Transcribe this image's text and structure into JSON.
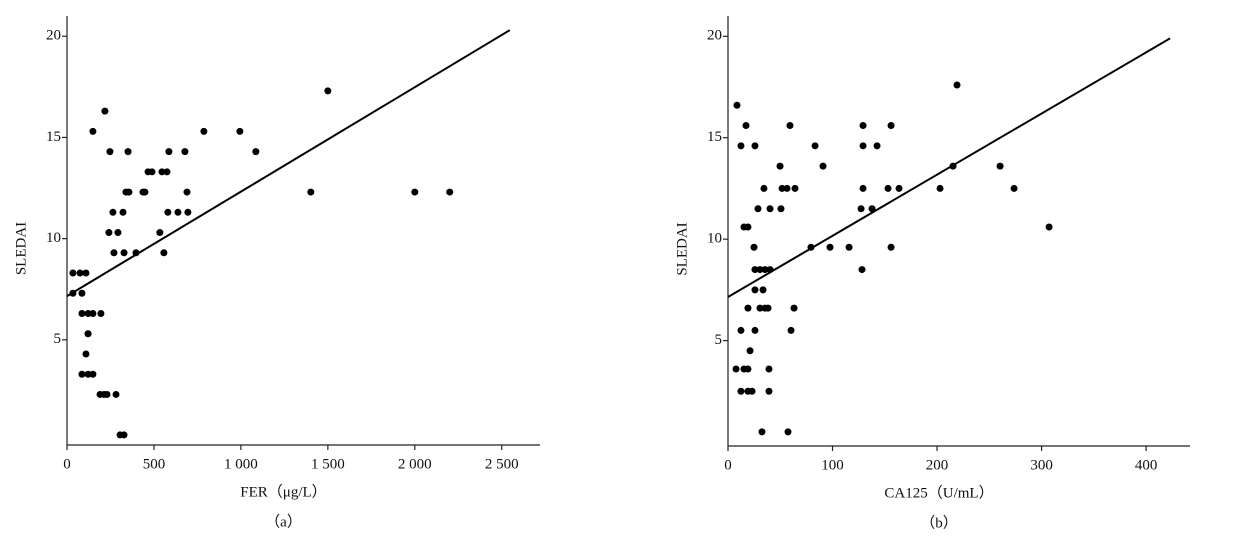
{
  "chart_data": [
    {
      "type": "scatter",
      "subtitle": "（a）",
      "x_label": "FER（μg/L）",
      "y_label": "SLEDAI",
      "color": "#000000",
      "x": [
        34,
        75,
        109,
        34,
        86,
        86,
        121,
        121,
        121,
        109,
        86,
        121,
        149,
        149,
        195,
        149,
        218,
        247,
        241,
        264,
        293,
        270,
        322,
        328,
        339,
        356,
        351,
        397,
        437,
        448,
        466,
        489,
        534,
        546,
        575,
        557,
        580,
        586,
        638,
        678,
        690,
        695,
        787,
        994,
        1086,
        1402,
        1500,
        2000,
        2201,
        190,
        213,
        230,
        282,
        305,
        328
      ],
      "y": [
        8.3,
        8.3,
        8.3,
        7.3,
        7.3,
        6.3,
        6.3,
        5.3,
        5.3,
        4.3,
        3.3,
        3.3,
        3.3,
        6.3,
        6.3,
        15.3,
        16.3,
        14.3,
        10.3,
        11.3,
        10.3,
        9.3,
        11.3,
        9.3,
        12.3,
        12.3,
        14.3,
        9.3,
        12.3,
        12.3,
        13.3,
        13.3,
        10.3,
        13.3,
        13.3,
        9.3,
        11.3,
        14.3,
        11.3,
        14.3,
        12.3,
        11.3,
        15.3,
        15.3,
        14.3,
        12.3,
        17.3,
        12.3,
        12.3,
        2.3,
        2.3,
        2.3,
        2.3,
        0.3,
        0.3
      ],
      "fit": {
        "x": [
          0,
          2546
        ],
        "y": [
          7.16,
          20.3
        ]
      },
      "xlim": [
        0,
        2720
      ],
      "ylim": [
        0,
        21
      ],
      "xticks": [
        0,
        500,
        {
          "value": 1000,
          "label": "1 000"
        },
        {
          "value": 1500,
          "label": "1 500"
        },
        {
          "value": 2000,
          "label": "2 000"
        },
        {
          "value": 2500,
          "label": "2 500"
        }
      ],
      "yticks": [
        5,
        10,
        15,
        20
      ]
    },
    {
      "type": "scatter",
      "subtitle": "（b）",
      "x_label": "CA125（U/mL）",
      "y_label": "SLEDAI",
      "color": "#000000",
      "x": [
        8.6,
        12.4,
        17.2,
        15.3,
        19.1,
        25.8,
        24.9,
        28.7,
        34.4,
        40.2,
        25.8,
        30.6,
        35.4,
        40.2,
        25.8,
        33.5,
        30.6,
        35.4,
        38.3,
        19.1,
        12.4,
        25.8,
        21.1,
        7.7,
        15.3,
        19.1,
        39.2,
        12.4,
        19.1,
        23.0,
        39.2,
        32.5,
        57.4,
        49.8,
        50.7,
        51.7,
        59.3,
        56.5,
        64.1,
        60.3,
        63.2,
        79.4,
        83.3,
        90.9,
        97.6,
        115.8,
        127.3,
        128.2,
        129.2,
        129.2,
        129.2,
        137.8,
        142.6,
        153.1,
        156.0,
        156.0,
        163.6,
        202.9,
        215.3,
        219.1,
        260.3,
        273.7,
        307.2
      ],
      "y": [
        16.6,
        14.6,
        15.6,
        10.6,
        10.6,
        14.6,
        9.6,
        11.5,
        12.5,
        11.5,
        8.5,
        8.5,
        8.5,
        8.5,
        7.5,
        7.5,
        6.6,
        6.6,
        6.6,
        6.6,
        5.5,
        5.5,
        4.5,
        3.6,
        3.6,
        3.6,
        3.6,
        2.5,
        2.5,
        2.5,
        2.5,
        0.5,
        0.5,
        13.6,
        11.5,
        12.5,
        15.6,
        12.5,
        12.5,
        5.5,
        6.6,
        9.6,
        14.6,
        13.6,
        9.6,
        9.6,
        11.5,
        8.5,
        15.6,
        14.6,
        12.5,
        11.5,
        14.6,
        12.5,
        15.6,
        9.6,
        12.5,
        12.5,
        13.6,
        17.6,
        13.6,
        12.5,
        10.6
      ],
      "fit": {
        "x": [
          0,
          423
        ],
        "y": [
          7.15,
          19.9
        ]
      },
      "xlim": [
        0,
        442
      ],
      "ylim": [
        0,
        21
      ],
      "xticks": [
        0,
        100,
        200,
        300,
        400
      ],
      "yticks": [
        5,
        10,
        15,
        20
      ]
    }
  ]
}
